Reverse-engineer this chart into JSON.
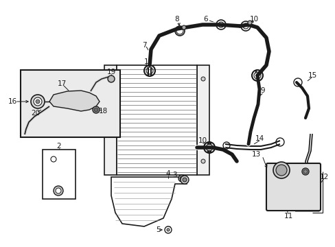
{
  "bg_color": "#ffffff",
  "line_color": "#1a1a1a",
  "gray_fill": "#d8d8d8",
  "light_fill": "#ebebeb",
  "fig_w": 4.89,
  "fig_h": 3.6,
  "dpi": 100
}
